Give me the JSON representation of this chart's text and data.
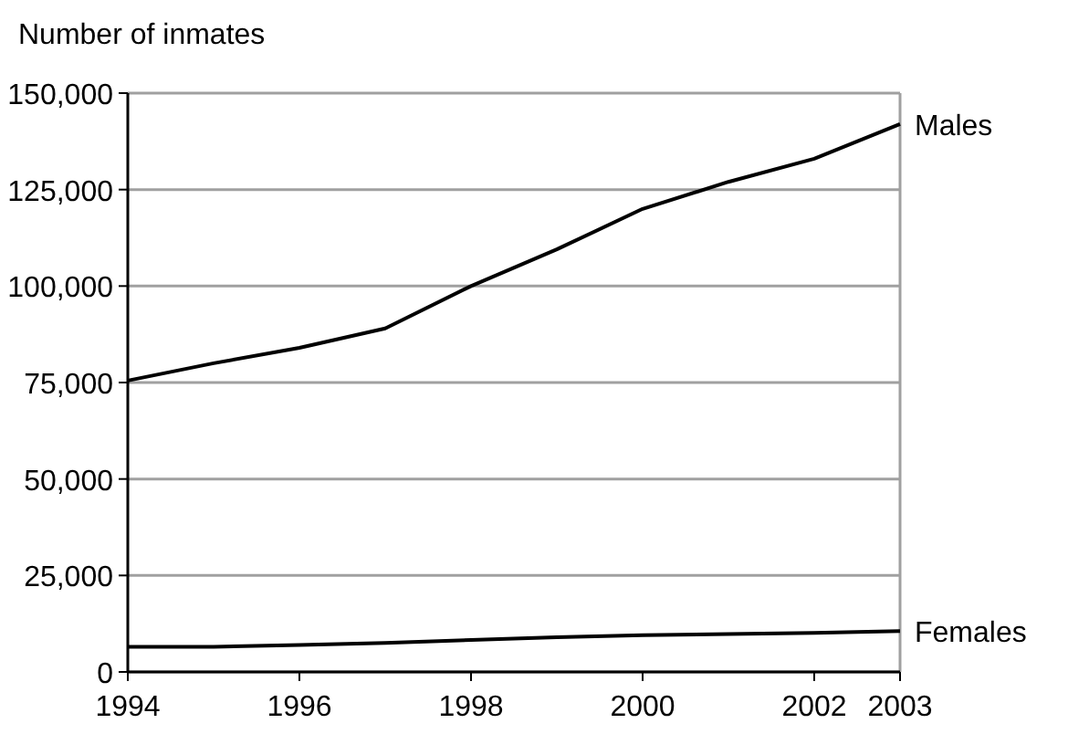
{
  "chart_data": {
    "type": "line",
    "ylabel": "Number of inmates",
    "x": [
      1994,
      1995,
      1996,
      1997,
      1998,
      1999,
      2000,
      2001,
      2002,
      2003
    ],
    "series": [
      {
        "name": "Males",
        "color": "#000000",
        "values": [
          75500,
          80000,
          84000,
          89000,
          100000,
          109500,
          120000,
          127000,
          133000,
          142000
        ]
      },
      {
        "name": "Females",
        "color": "#000000",
        "values": [
          6500,
          6500,
          7000,
          7500,
          8300,
          9000,
          9500,
          9800,
          10100,
          10600
        ]
      }
    ],
    "xlim": [
      1994,
      2003
    ],
    "xticks": [
      1994,
      1996,
      1998,
      2000,
      2002,
      2003
    ],
    "ylim": [
      0,
      150000
    ],
    "yticks": [
      0,
      {
        "value": 25000,
        "label": "25,000"
      },
      {
        "value": 50000,
        "label": "50,000"
      },
      {
        "value": 75000,
        "label": "75,000"
      },
      {
        "value": 100000,
        "label": "100,000"
      },
      {
        "value": 125000,
        "label": "125,000"
      },
      {
        "value": 150000,
        "label": "150,000"
      }
    ],
    "grid": "y",
    "marker": "none",
    "line_style": "solid"
  }
}
